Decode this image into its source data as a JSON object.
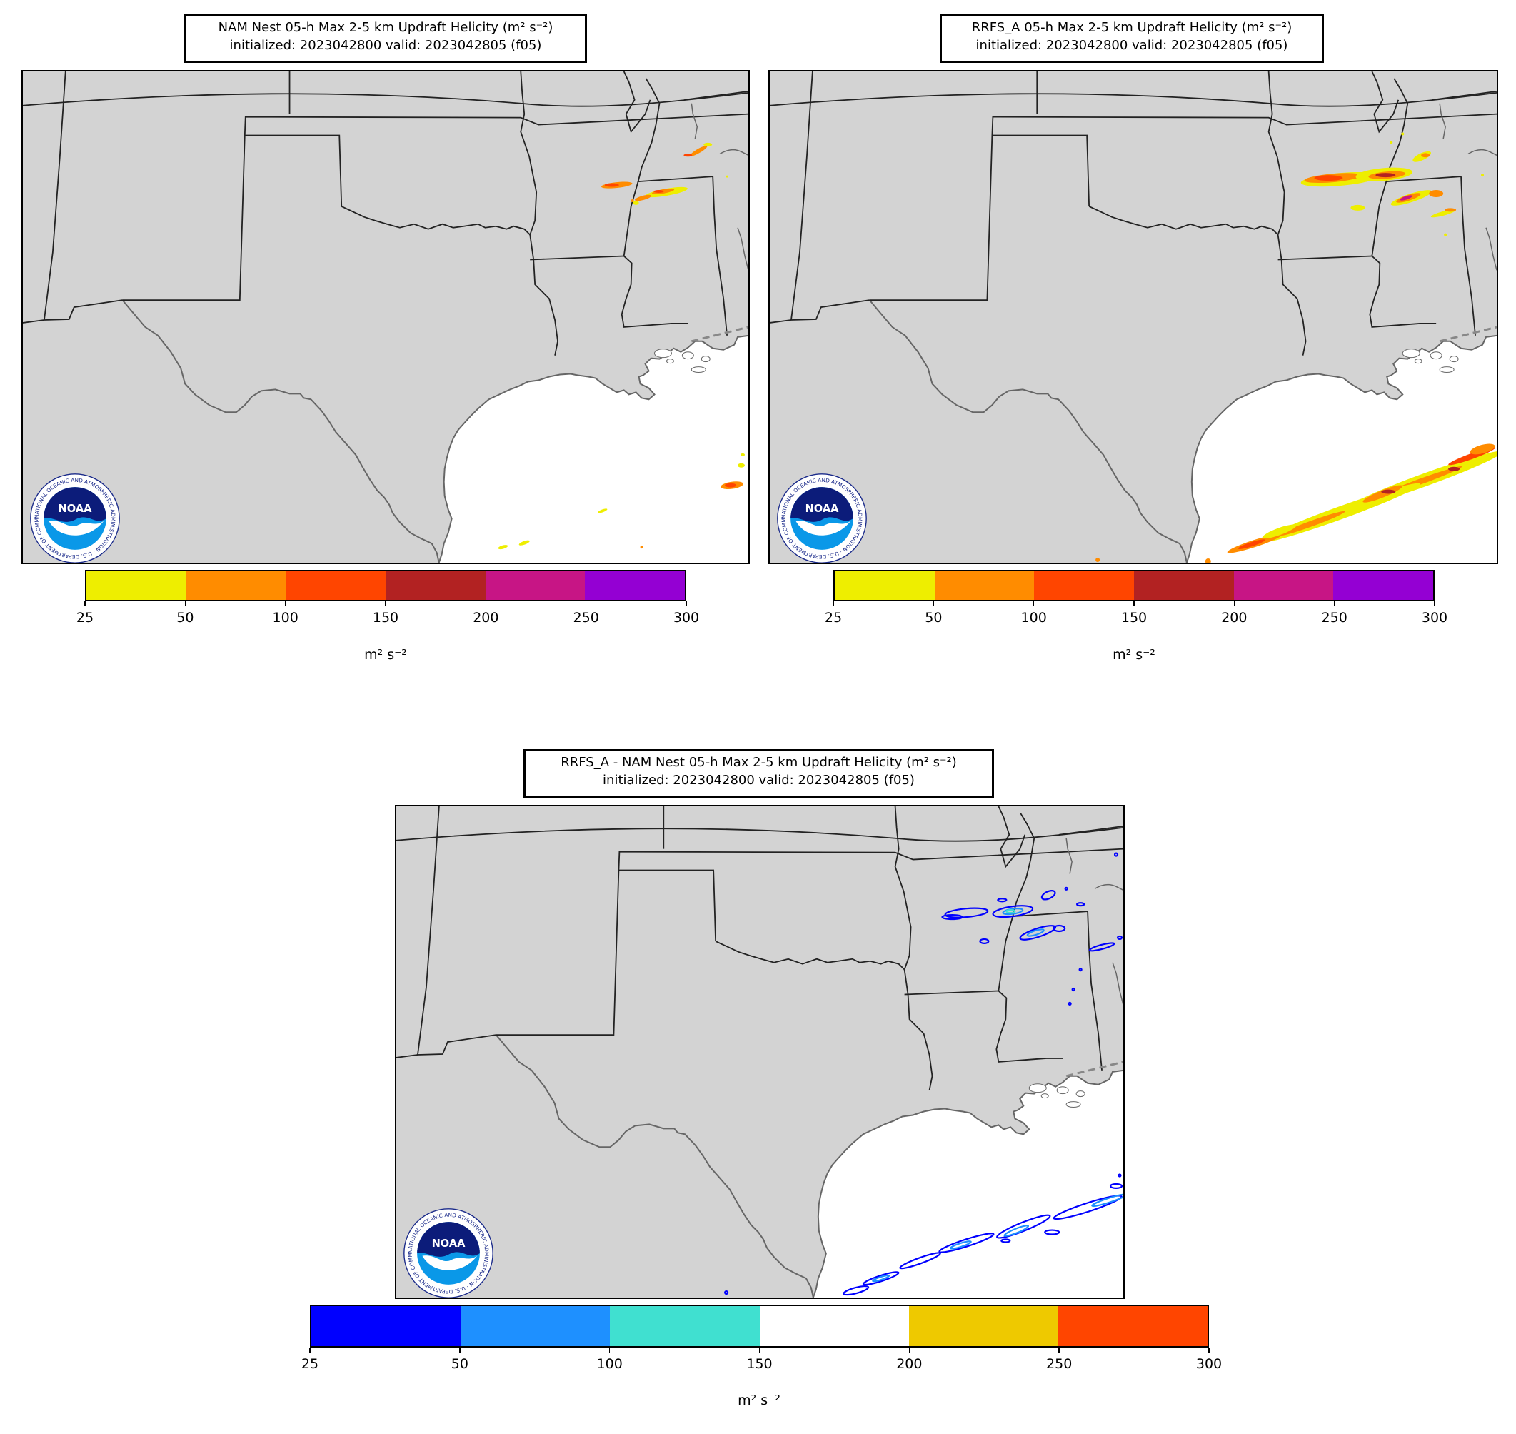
{
  "panels": [
    {
      "id": "nam",
      "title_line1": "NAM Nest 05-h Max 2-5 km Updraft Helicity (m² s⁻²)",
      "title_line2": "initialized: 2023042800 valid: 2023042805 (f05)",
      "colorbar": {
        "ticks": [
          "25",
          "50",
          "100",
          "150",
          "200",
          "250",
          "300"
        ],
        "colors": [
          "#eeee00",
          "#ff8c00",
          "#ff4500",
          "#b22222",
          "#c71585",
          "#9400d3"
        ],
        "unit": "m² s⁻²"
      }
    },
    {
      "id": "rrfs",
      "title_line1": "RRFS_A 05-h Max 2-5 km Updraft Helicity (m² s⁻²)",
      "title_line2": "initialized: 2023042800 valid: 2023042805 (f05)",
      "colorbar": {
        "ticks": [
          "25",
          "50",
          "100",
          "150",
          "200",
          "250",
          "300"
        ],
        "colors": [
          "#eeee00",
          "#ff8c00",
          "#ff4500",
          "#b22222",
          "#c71585",
          "#9400d3"
        ],
        "unit": "m² s⁻²"
      }
    },
    {
      "id": "diff",
      "title_line1": "RRFS_A - NAM Nest 05-h Max 2-5 km Updraft Helicity (m² s⁻²)",
      "title_line2": "initialized: 2023042800 valid: 2023042805 (f05)",
      "colorbar": {
        "ticks": [
          "25",
          "50",
          "100",
          "150",
          "200",
          "250",
          "300"
        ],
        "colors": [
          "#0000ff",
          "#1e90ff",
          "#40e0d0",
          "#ffffff",
          "#eec900",
          "#ff4500"
        ],
        "unit": "m² s⁻²"
      }
    }
  ],
  "map_colors": {
    "land": "#d3d3d3",
    "water": "#ffffff",
    "borders": "#222222",
    "coast": "#666666"
  },
  "logo": {
    "text": "NOAA",
    "ring_text": "NATIONAL OCEANIC AND ATMOSPHERIC ADMINISTRATION · U.S. DEPARTMENT OF COMMERCE"
  }
}
